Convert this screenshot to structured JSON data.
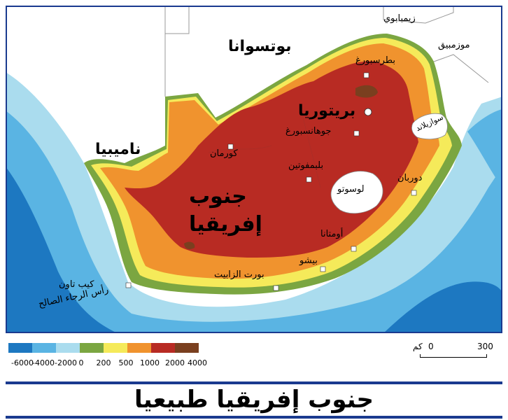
{
  "title": "جنوب إفريقيا طبيعيا",
  "countries": {
    "botswana": "بوتسوانا",
    "namibia": "ناميبيا",
    "zimbabwe": "زيمبابوي",
    "mozambique": "موزمبيق",
    "swaziland": "سوازيلاند",
    "lesotho": "لوسوتو"
  },
  "south_africa": {
    "line1": "جنوب",
    "line2": "إفريقيا"
  },
  "cities": {
    "pretoria": "بريتوريا",
    "pietersburg": "بطرسبورغ",
    "johannesburg": "جوهانسبورغ",
    "kuruman": "كورمان",
    "bloemfontein": "بلبمفوتين",
    "durban": "دوربان",
    "umtata": "أومتانا",
    "bisho": "بيشو",
    "port_elizabeth": "بورت الزابيت",
    "cape_town": "كيب تاون",
    "cape_good_hope": "رأس الرجاء الصالح"
  },
  "legend": {
    "values": [
      "-6000",
      "-4000",
      "-2000",
      "0",
      "200",
      "500",
      "1000",
      "2000",
      "4000"
    ],
    "colors": [
      "#1d78c1",
      "#5ab4e3",
      "#aadcee",
      "#7ba641",
      "#f5ea5a",
      "#f0932e",
      "#b82b23",
      "#7a3f1f"
    ]
  },
  "scale": {
    "zero": "0",
    "max": "300",
    "unit": "كم"
  },
  "colors": {
    "deep_ocean": "#1d78c1",
    "mid_ocean": "#5ab4e3",
    "shallow_ocean": "#aadcee",
    "lowland": "#7ba641",
    "low_plateau": "#f5ea5a",
    "plateau": "#f0932e",
    "highland": "#b82b23",
    "mountain": "#7a3f1f",
    "border_frame": "#1a3a8f"
  }
}
